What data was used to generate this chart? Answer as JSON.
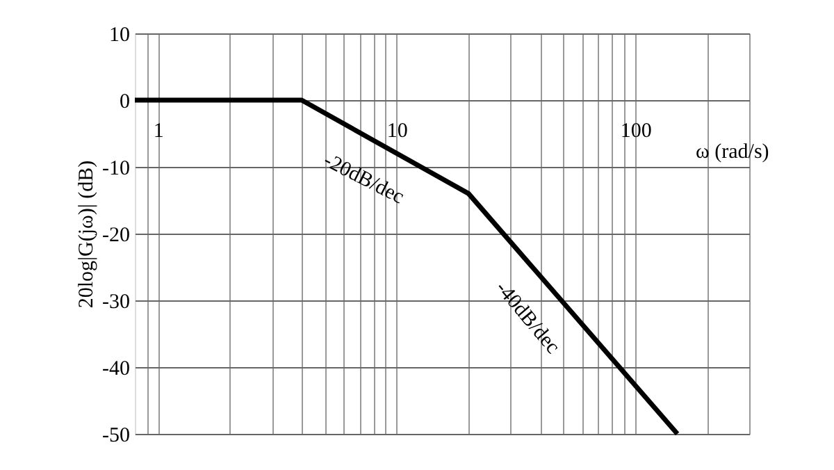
{
  "chart_data": {
    "type": "line",
    "ylabel": "20log|G(jω)| (dB)",
    "xlabel": "ω (rad/s)",
    "x": [
      0.8,
      4,
      20,
      150
    ],
    "series": [
      {
        "color": "#000000",
        "values": [
          0,
          0,
          -14,
          -50
        ]
      }
    ],
    "log": "x",
    "xlim": [
      0.8,
      300
    ],
    "ylim": [
      -50,
      10
    ],
    "xticks": [
      {
        "value": 0.9,
        "label": null
      },
      1,
      {
        "value": 2,
        "label": null
      },
      {
        "value": 3,
        "label": null
      },
      {
        "value": 4,
        "label": null
      },
      {
        "value": 5,
        "label": null
      },
      {
        "value": 6,
        "label": null
      },
      {
        "value": 7,
        "label": null
      },
      {
        "value": 8,
        "label": null
      },
      {
        "value": 9,
        "label": null
      },
      10,
      {
        "value": 20,
        "label": null
      },
      {
        "value": 30,
        "label": null
      },
      {
        "value": 40,
        "label": null
      },
      {
        "value": 50,
        "label": null
      },
      {
        "value": 60,
        "label": null
      },
      {
        "value": 70,
        "label": null
      },
      {
        "value": 80,
        "label": null
      },
      {
        "value": 90,
        "label": null
      },
      100,
      {
        "value": 200,
        "label": null
      },
      {
        "value": 300,
        "label": null
      }
    ],
    "yticks": [
      -50,
      -40,
      -30,
      -20,
      -10,
      0,
      10
    ],
    "grid": true,
    "marker": "none",
    "line_style": "solid",
    "annotations": [
      "-20dB/dec",
      "-40dB/dec"
    ]
  }
}
